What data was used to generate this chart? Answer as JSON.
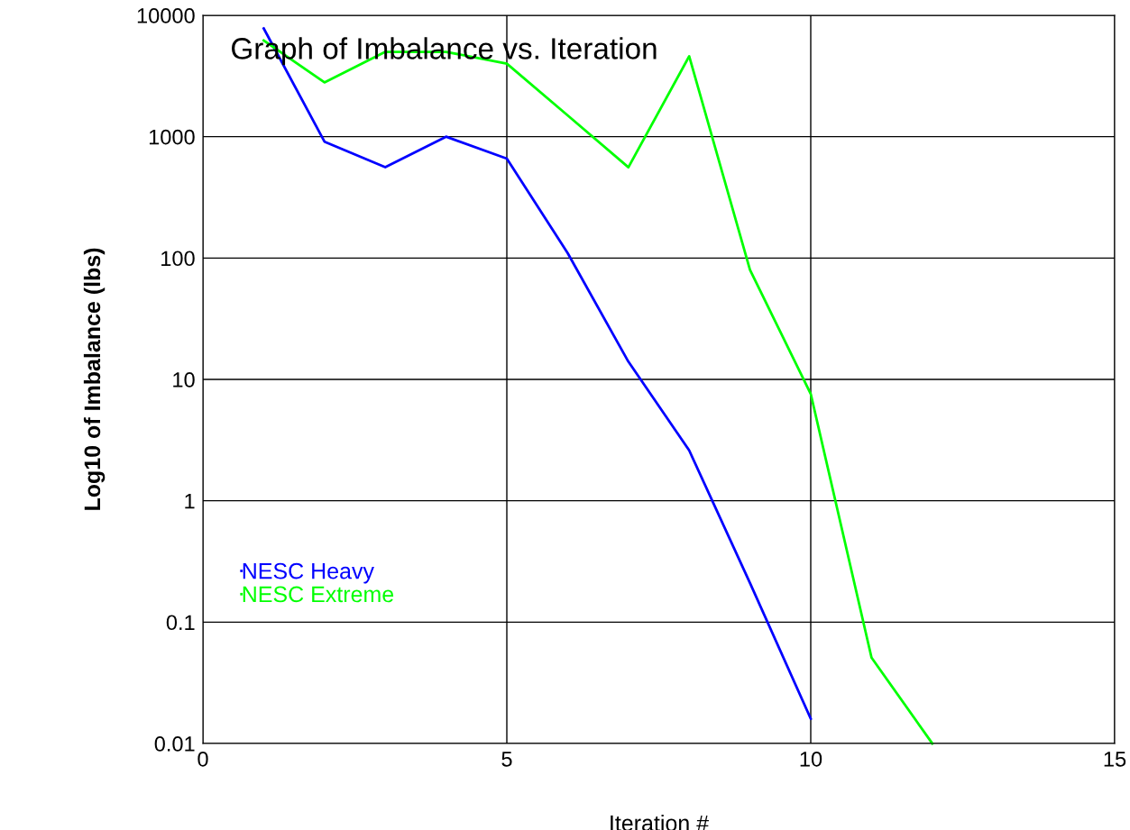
{
  "chart_data": {
    "type": "line",
    "title": "Graph of Imbalance vs. Iteration",
    "xlabel": "Iteration #",
    "ylabel": "Log10 of Imbalance (lbs)",
    "x": [
      1,
      2,
      3,
      4,
      5,
      6,
      7,
      8,
      9,
      10,
      11,
      12
    ],
    "series": [
      {
        "name": "NESC Heavy",
        "color": "#0000ff",
        "values": [
          7800,
          910,
          560,
          1000,
          660,
          110,
          14,
          2.6,
          0.21,
          0.016,
          null,
          null
        ]
      },
      {
        "name": "NESC Extreme",
        "color": "#00ff00",
        "values": [
          6200,
          2800,
          5000,
          5000,
          4000,
          1500,
          560,
          4600,
          80,
          7.6,
          0.051,
          0.01
        ]
      }
    ],
    "xlim": [
      0,
      15
    ],
    "xticks": [
      0,
      5,
      10,
      15
    ],
    "ylim": [
      0.01,
      10000
    ],
    "yticks": [
      {
        "value": 0.01,
        "label": "0.01"
      },
      {
        "value": 0.1,
        "label": "0.1"
      },
      1,
      10,
      100,
      1000,
      10000
    ],
    "log": "y",
    "grid": true,
    "legend": "bottom left",
    "marker": "none",
    "line_style": "solid"
  }
}
